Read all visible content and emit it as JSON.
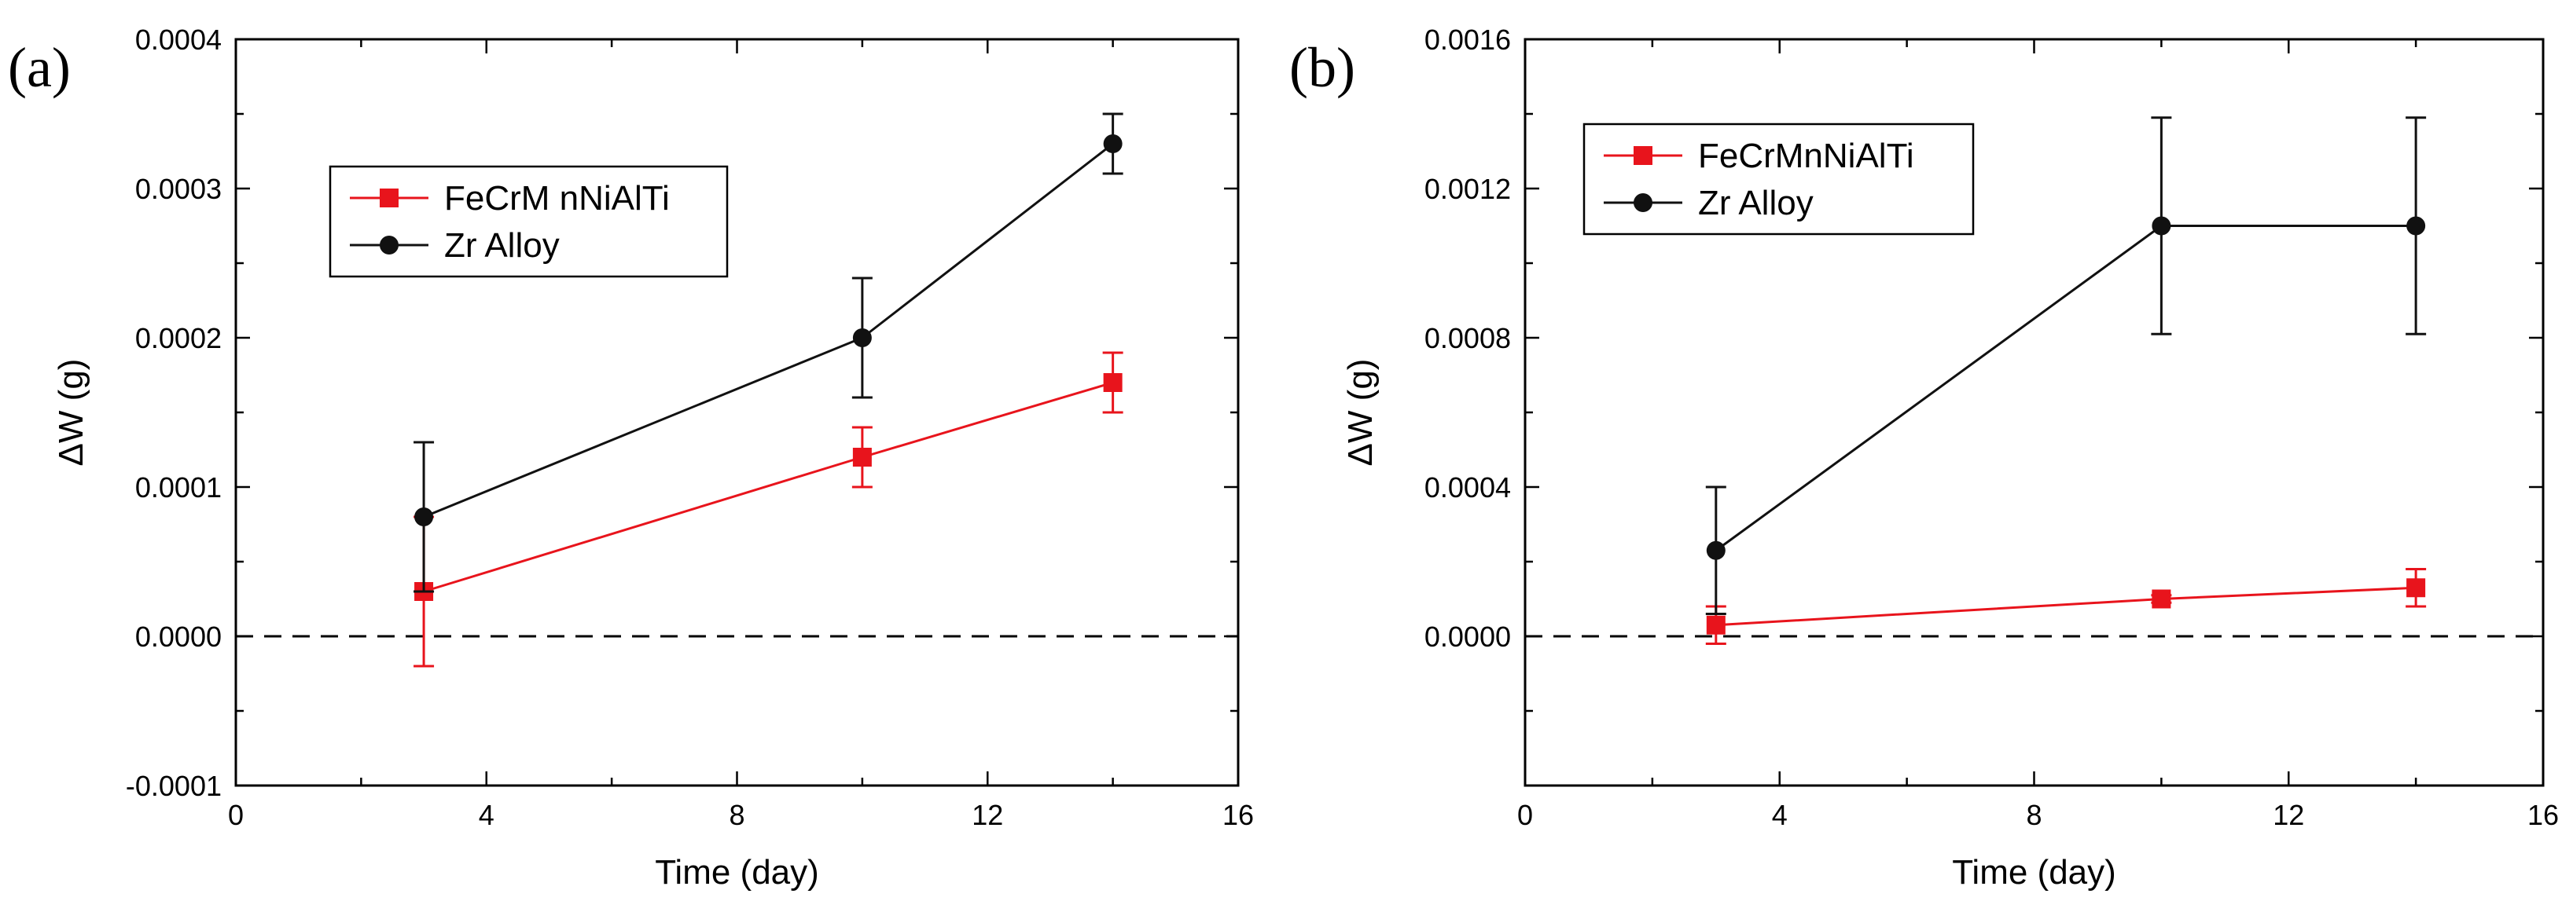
{
  "chart_data": [
    {
      "type": "line",
      "panel_label": "(a)",
      "xlabel": "Time (day)",
      "ylabel": "ΔW (g)",
      "xlim": [
        0,
        16
      ],
      "ylim": [
        -0.0001,
        0.0004
      ],
      "xticks": [
        0,
        4,
        8,
        12,
        16
      ],
      "yticks": [
        -0.0001,
        0.0,
        0.0001,
        0.0002,
        0.0003,
        0.0004
      ],
      "xtick_labels": [
        "0",
        "4",
        "8",
        "12",
        "16"
      ],
      "ytick_labels": [
        "-0.0001",
        "0.0000",
        "0.0001",
        "0.0002",
        "0.0003",
        "0.0004"
      ],
      "reference_line": {
        "y": 0,
        "style": "dashed"
      },
      "legend": {
        "position": "upper-left"
      },
      "series": [
        {
          "name": "FeCrMnNiAlTi",
          "label": "FeCrM nNiAlTi",
          "color": "#e8141c",
          "marker": "square",
          "x": [
            3,
            10,
            14
          ],
          "y": [
            3e-05,
            0.00012,
            0.00017
          ],
          "err": [
            5e-05,
            2e-05,
            2e-05
          ]
        },
        {
          "name": "Zr Alloy",
          "label": "Zr Alloy",
          "color": "#111111",
          "marker": "circle",
          "x": [
            3,
            10,
            14
          ],
          "y": [
            8e-05,
            0.0002,
            0.00033
          ],
          "err": [
            5e-05,
            4e-05,
            2e-05
          ]
        }
      ]
    },
    {
      "type": "line",
      "panel_label": "(b)",
      "xlabel": "Time (day)",
      "ylabel": "ΔW (g)",
      "xlim": [
        0,
        16
      ],
      "ylim": [
        -0.0004,
        0.0016
      ],
      "xticks": [
        0,
        4,
        8,
        12,
        16
      ],
      "yticks": [
        0.0,
        0.0004,
        0.0008,
        0.0012,
        0.0016
      ],
      "xtick_labels": [
        "0",
        "4",
        "8",
        "12",
        "16"
      ],
      "ytick_labels": [
        "0.0000",
        "0.0004",
        "0.0008",
        "0.0012",
        "0.0016"
      ],
      "reference_line": {
        "y": 0,
        "style": "dashed"
      },
      "legend": {
        "position": "upper-left"
      },
      "series": [
        {
          "name": "FeCrMnNiAlTi",
          "label": "FeCrMnNiAlTi",
          "color": "#e8141c",
          "marker": "square",
          "x": [
            3,
            10,
            14
          ],
          "y": [
            3e-05,
            0.0001,
            0.00013
          ],
          "err": [
            5e-05,
            1e-05,
            5e-05
          ]
        },
        {
          "name": "Zr Alloy",
          "label": "Zr Alloy",
          "color": "#111111",
          "marker": "circle",
          "x": [
            3,
            10,
            14
          ],
          "y": [
            0.00023,
            0.0011,
            0.0011
          ],
          "err": [
            0.00017,
            0.00029,
            0.00029
          ]
        }
      ]
    }
  ]
}
